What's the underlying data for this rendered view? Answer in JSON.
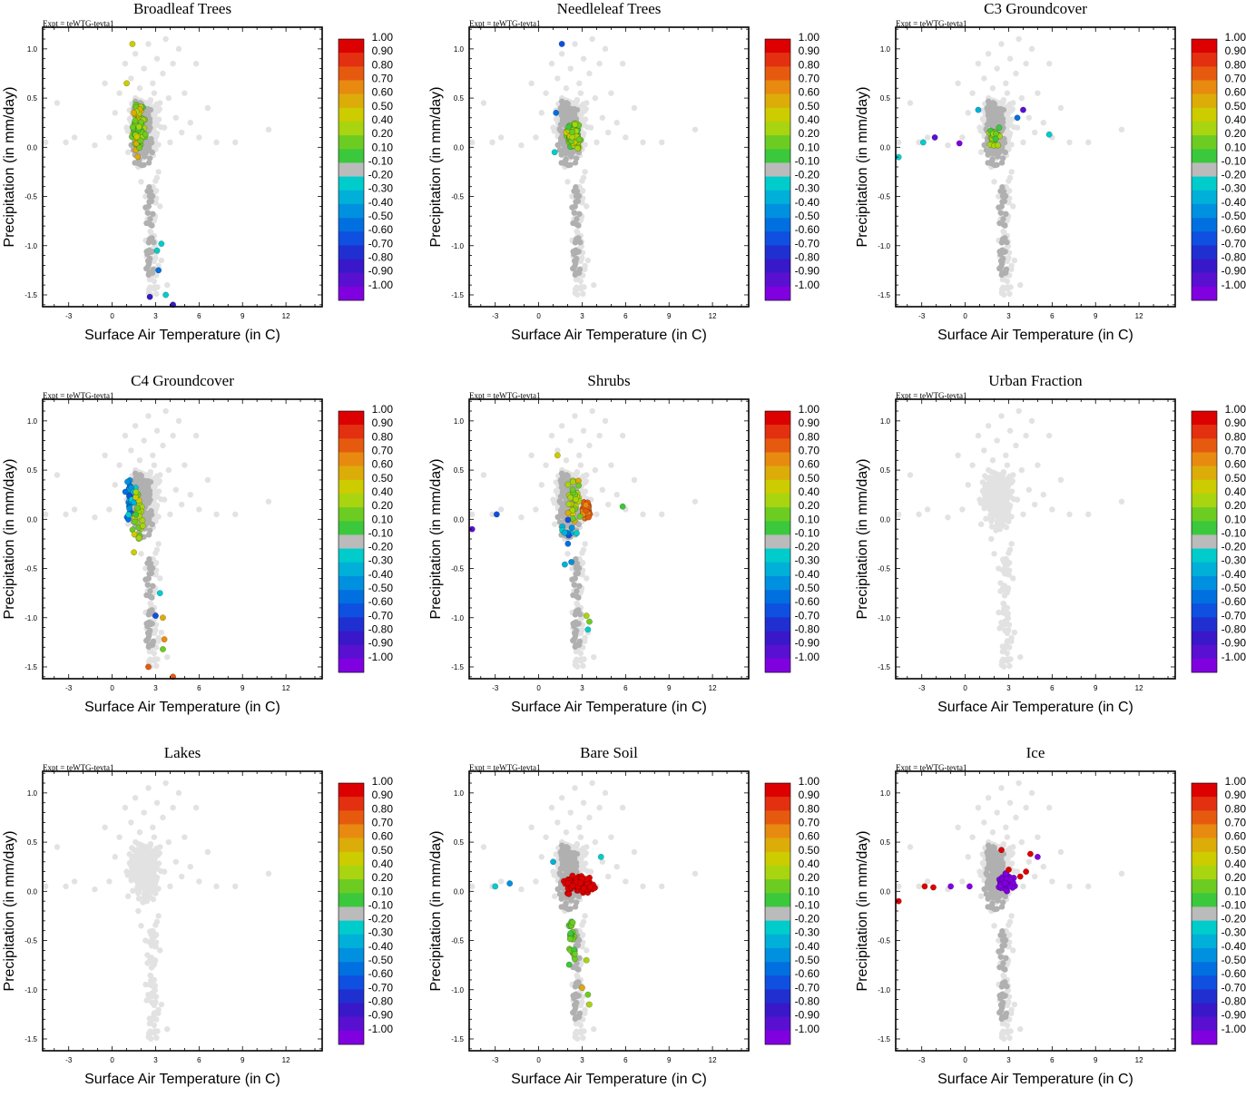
{
  "chart_data": {
    "type": "scatter",
    "experiment_label": "Expt = teWTG-tevta1",
    "xlabel": "Surface Air Temperature (in C)",
    "ylabel": "Precipitation (in mm/day)",
    "xlim": [
      -4.8,
      14.5
    ],
    "ylim": [
      -1.62,
      1.22
    ],
    "xticks": [
      "-3",
      "0",
      "3",
      "6",
      "9",
      "12"
    ],
    "yticks": [
      "1.0",
      "0.5",
      "0.0",
      "-0.5",
      "-1.0",
      "-1.5"
    ],
    "colorbar": {
      "labels": [
        "1.00",
        "0.90",
        "0.80",
        "0.70",
        "0.60",
        "0.50",
        "0.40",
        "0.20",
        "0.10",
        "-0.10",
        "-0.20",
        "-0.30",
        "-0.40",
        "-0.50",
        "-0.60",
        "-0.70",
        "-0.80",
        "-0.90",
        "-1.00"
      ],
      "colors": [
        "#dd0000",
        "#e33010",
        "#e65a10",
        "#e88a10",
        "#dcac08",
        "#cccc00",
        "#a8d410",
        "#6ccc22",
        "#3cc83c",
        "#bbbbbb",
        "#00cccc",
        "#00b0d8",
        "#0090e0",
        "#0070e0",
        "#1050e0",
        "#2030d0",
        "#3818c8",
        "#5a10d0",
        "#8000e0"
      ]
    },
    "panels": [
      {
        "title": "Broadleaf Trees",
        "pattern": "broadleaf"
      },
      {
        "title": "Needleleaf Trees",
        "pattern": "needleleaf"
      },
      {
        "title": "C3 Groundcover",
        "pattern": "c3"
      },
      {
        "title": "C4 Groundcover",
        "pattern": "c4"
      },
      {
        "title": "Shrubs",
        "pattern": "shrubs"
      },
      {
        "title": "Urban Fraction",
        "pattern": "none"
      },
      {
        "title": "Lakes",
        "pattern": "none"
      },
      {
        "title": "Bare Soil",
        "pattern": "baresoil"
      },
      {
        "title": "Ice",
        "pattern": "ice"
      }
    ],
    "background_points": [
      [
        -4.6,
        0.05
      ],
      [
        -3.8,
        0.45
      ],
      [
        -3.2,
        0.05
      ],
      [
        -2.6,
        0.1
      ],
      [
        -1.2,
        0.02
      ],
      [
        -0.5,
        0.65
      ],
      [
        -0.2,
        0.1
      ],
      [
        0.2,
        0.35
      ],
      [
        0.5,
        0.55
      ],
      [
        0.9,
        0.85
      ],
      [
        1.0,
        0.2
      ],
      [
        1.1,
        -0.05
      ],
      [
        1.3,
        0.7
      ],
      [
        1.5,
        0.42
      ],
      [
        1.6,
        0.95
      ],
      [
        1.7,
        0.1
      ],
      [
        1.8,
        -0.2
      ],
      [
        1.9,
        0.6
      ],
      [
        2.0,
        0.3
      ],
      [
        2.0,
        -0.35
      ],
      [
        2.2,
        0.8
      ],
      [
        2.2,
        0.15
      ],
      [
        2.3,
        -0.5
      ],
      [
        2.4,
        0.45
      ],
      [
        2.5,
        1.05
      ],
      [
        2.6,
        0.0
      ],
      [
        2.6,
        -0.7
      ],
      [
        2.8,
        0.25
      ],
      [
        2.8,
        0.65
      ],
      [
        2.9,
        -0.9
      ],
      [
        3.0,
        0.1
      ],
      [
        3.1,
        0.9
      ],
      [
        3.2,
        -0.25
      ],
      [
        3.3,
        0.45
      ],
      [
        3.4,
        -1.15
      ],
      [
        3.5,
        0.75
      ],
      [
        3.6,
        0.2
      ],
      [
        3.7,
        1.1
      ],
      [
        3.8,
        -1.4
      ],
      [
        3.9,
        0.5
      ],
      [
        4.0,
        0.05
      ],
      [
        4.2,
        0.85
      ],
      [
        4.4,
        0.3
      ],
      [
        4.6,
        1.0
      ],
      [
        4.8,
        0.15
      ],
      [
        5.0,
        0.55
      ],
      [
        5.4,
        0.25
      ],
      [
        5.8,
        0.85
      ],
      [
        6.0,
        0.1
      ],
      [
        6.6,
        0.4
      ],
      [
        7.2,
        0.05
      ],
      [
        8.5,
        0.05
      ],
      [
        10.8,
        0.18
      ],
      [
        2.1,
        0.05
      ],
      [
        2.7,
        0.35
      ],
      [
        1.4,
        0.25
      ],
      [
        3.3,
        -0.6
      ],
      [
        2.4,
        -0.1
      ],
      [
        1.9,
        0.15
      ],
      [
        2.9,
        0.55
      ]
    ]
  }
}
